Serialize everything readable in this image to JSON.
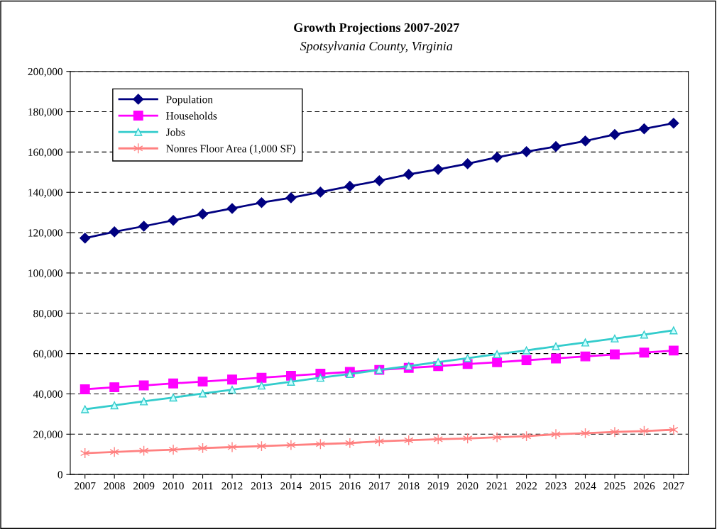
{
  "chart_data": {
    "type": "line",
    "title": "Growth Projections 2007-2027",
    "subtitle": "Spotsylvania County, Virginia",
    "categories": [
      "2007",
      "2008",
      "2009",
      "2010",
      "2011",
      "2012",
      "2013",
      "2014",
      "2015",
      "2016",
      "2017",
      "2018",
      "2019",
      "2020",
      "2021",
      "2022",
      "2023",
      "2024",
      "2025",
      "2026",
      "2027"
    ],
    "series": [
      {
        "name": "Population",
        "color": "#000080",
        "marker": "diamond",
        "values": [
          117300,
          120400,
          123200,
          126100,
          129200,
          132000,
          134900,
          137300,
          140100,
          143000,
          145800,
          148900,
          151400,
          154200,
          157400,
          160200,
          162700,
          165500,
          168700,
          171500,
          174300
        ]
      },
      {
        "name": "Households",
        "color": "#ff00ff",
        "marker": "square",
        "values": [
          42300,
          43300,
          44200,
          45200,
          46100,
          47100,
          48000,
          49000,
          50000,
          50900,
          51900,
          52900,
          53800,
          54800,
          55700,
          56700,
          57600,
          58600,
          59600,
          60500,
          61500
        ]
      },
      {
        "name": "Jobs",
        "color": "#33cccc",
        "marker": "triangle",
        "values": [
          32400,
          34300,
          36300,
          38200,
          40200,
          42100,
          44100,
          46000,
          48000,
          49900,
          51900,
          53800,
          55800,
          57700,
          59700,
          61600,
          63600,
          65500,
          67500,
          69400,
          71500
        ]
      },
      {
        "name": "Nonres Floor Area (1,000 SF)",
        "color": "#ff8080",
        "marker": "cross",
        "values": [
          10600,
          11200,
          11800,
          12300,
          13100,
          13600,
          14100,
          14600,
          15100,
          15600,
          16500,
          17000,
          17500,
          17900,
          18500,
          19000,
          20000,
          20500,
          21100,
          21600,
          22200
        ]
      }
    ],
    "ylim": [
      0,
      200000
    ],
    "yticks": [
      {
        "value": 0,
        "label": "0"
      },
      {
        "value": 20000,
        "label": "20,000"
      },
      {
        "value": 40000,
        "label": "40,000"
      },
      {
        "value": 60000,
        "label": "60,000"
      },
      {
        "value": 80000,
        "label": "80,000"
      },
      {
        "value": 100000,
        "label": "100,000"
      },
      {
        "value": 120000,
        "label": "120,000"
      },
      {
        "value": 140000,
        "label": "140,000"
      },
      {
        "value": 160000,
        "label": "160,000"
      },
      {
        "value": 180000,
        "label": "180,000"
      },
      {
        "value": 200000,
        "label": "200,000"
      }
    ],
    "grid": "y",
    "legend": "top left",
    "line_style": "solid"
  }
}
